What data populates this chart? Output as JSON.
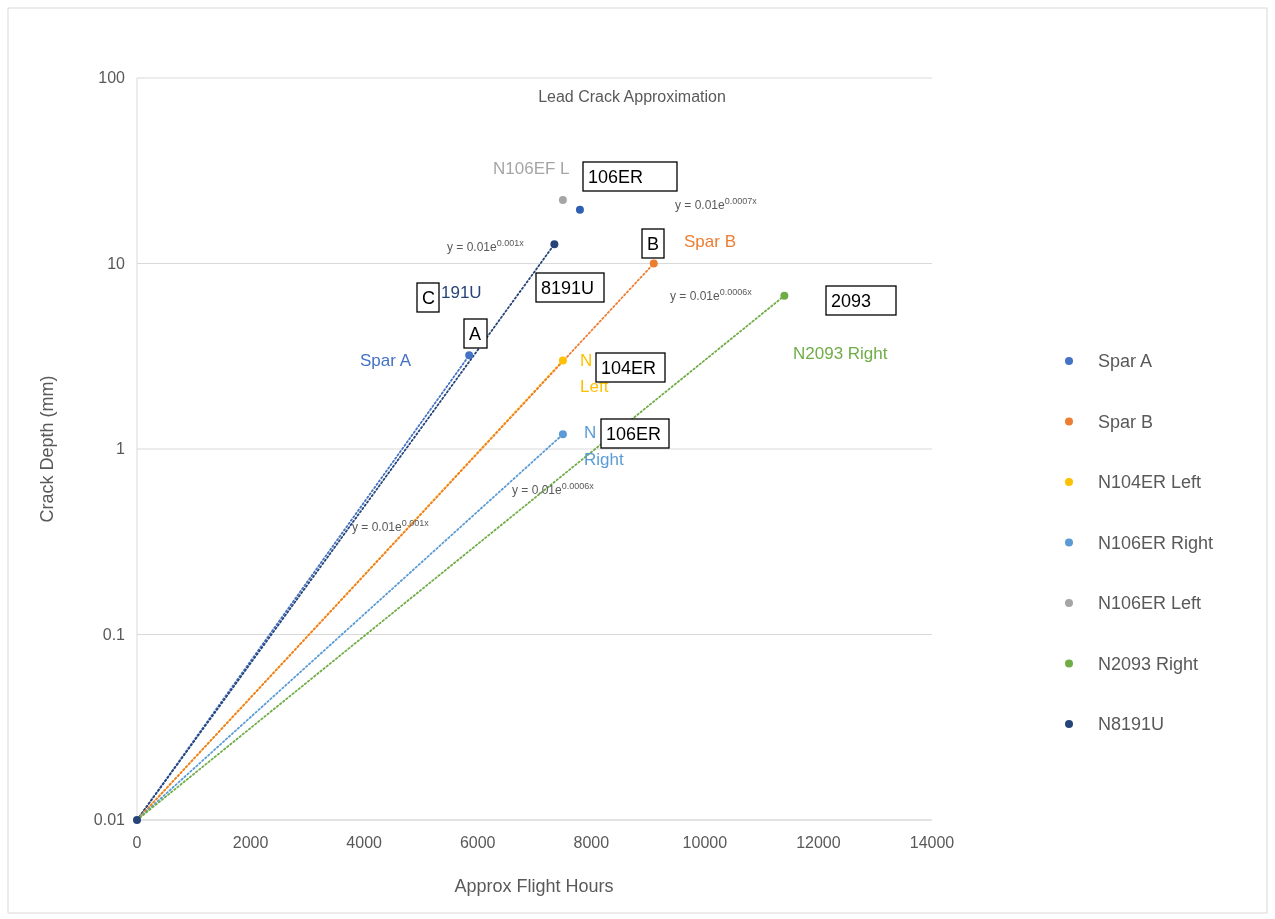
{
  "chart_data": {
    "type": "scatter",
    "title": "Lead Crack Approximation",
    "xlabel": "Approx Flight Hours",
    "ylabel": "Crack Depth (mm)",
    "log": "y",
    "grid": "y",
    "legend": "right",
    "marker": "circle",
    "xlim": [
      0,
      14000
    ],
    "ylim": [
      0.01,
      100
    ],
    "xticks": [
      0,
      2000,
      4000,
      6000,
      8000,
      10000,
      12000,
      14000
    ],
    "yticks": [
      0.01,
      0.1,
      1,
      10,
      100
    ],
    "series": [
      {
        "type": "line",
        "line_style": "dotted",
        "marker": "none",
        "color": "#4472c4",
        "x": [
          0,
          5850
        ],
        "values": [
          0.01,
          3.2
        ]
      },
      {
        "type": "line",
        "line_style": "dotted",
        "marker": "none",
        "color": "#264478",
        "x": [
          0,
          7350
        ],
        "values": [
          0.01,
          12.7
        ]
      },
      {
        "type": "line",
        "line_style": "dotted",
        "marker": "none",
        "color": "#ffc000",
        "x": [
          0,
          7500
        ],
        "values": [
          0.01,
          3
        ]
      },
      {
        "type": "line",
        "line_style": "dotted",
        "marker": "none",
        "color": "#ed7d31",
        "x": [
          0,
          9100
        ],
        "values": [
          0.01,
          10
        ]
      },
      {
        "type": "line",
        "line_style": "dotted",
        "marker": "none",
        "color": "#5b9bd5",
        "x": [
          0,
          7500
        ],
        "values": [
          0.01,
          1.2
        ]
      },
      {
        "type": "line",
        "line_style": "dotted",
        "marker": "none",
        "color": "#70ad47",
        "x": [
          0,
          11400
        ],
        "values": [
          0.01,
          6.7
        ]
      },
      {
        "name": "Spar A",
        "color": "#4472c4",
        "x": [
          5850
        ],
        "values": [
          3.2
        ]
      },
      {
        "name": "Spar B",
        "color": "#ed7d31",
        "x": [
          9100
        ],
        "values": [
          10
        ]
      },
      {
        "name": "N104ER Left",
        "color": "#ffc000",
        "x": [
          7500
        ],
        "values": [
          3
        ]
      },
      {
        "name": "N106ER Right",
        "color": "#5b9bd5",
        "x": [
          7500
        ],
        "values": [
          1.2
        ]
      },
      {
        "name": "N106ER Left",
        "color": "#a5a5a5",
        "x": [
          7500
        ],
        "values": [
          22
        ]
      },
      {
        "name": "N2093 Right",
        "color": "#70ad47",
        "x": [
          11400
        ],
        "values": [
          6.7
        ]
      },
      {
        "name": "N8191U",
        "color": "#264478",
        "x": [
          0,
          7350
        ],
        "values": [
          0.01,
          12.7
        ]
      },
      {
        "color": "#2f5fb3",
        "x": [
          7800
        ],
        "values": [
          19.5
        ]
      }
    ],
    "annotations": [
      "N106EF L",
      "106ER",
      "y = 0.01e$^{0.0007x}$",
      "y = 0.01e$^{0.001x}$",
      "B",
      "Spar B",
      "C",
      "191U",
      "8191U",
      "y = 0.01e$^{0.0006x}$",
      "2093",
      "A",
      "Spar A",
      "N",
      "Left",
      "104ER",
      "N2093 Right",
      "N",
      "Right",
      "106ER",
      "y = 0.01e$^{0.0006x}$",
      "y = 0.01e$^{0.001x}$"
    ]
  }
}
